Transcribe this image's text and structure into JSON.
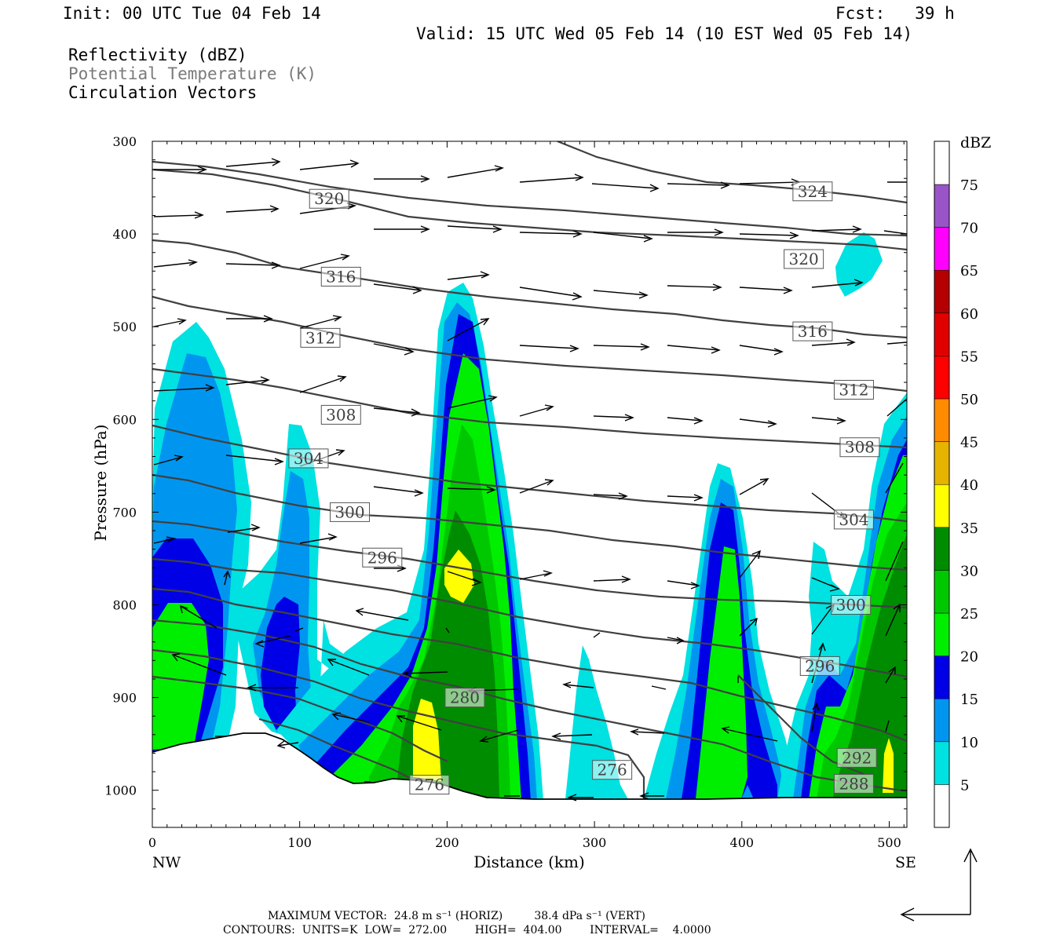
{
  "header": {
    "init": "Init: 00 UTC Tue 04 Feb 14",
    "fcst": "Fcst:   39 h",
    "valid": "Valid: 15 UTC Wed 05 Feb 14 (10 EST Wed 05 Feb 14)",
    "fields": [
      "Reflectivity (dBZ)",
      "Potential Temperature (K)",
      "Circulation Vectors"
    ]
  },
  "colors": {
    "dbz": [
      "#ffffff",
      "#00e1e1",
      "#0096f0",
      "#0000e6",
      "#00ef00",
      "#00c800",
      "#008c00",
      "#ffff00",
      "#e6b400",
      "#ff8c00",
      "#ff0000",
      "#e10000",
      "#b40000",
      "#ff00ff",
      "#9955c8"
    ],
    "theta": "#404040"
  },
  "chart_data": {
    "type": "heatmap",
    "xlabel": "Distance (km)",
    "ylabel": "Pressure (hPa)",
    "xlim": [
      0,
      512
    ],
    "ylim": [
      1040,
      300
    ],
    "x_ticks": [
      "0",
      "100",
      "200",
      "300",
      "400",
      "500"
    ],
    "y_ticks": [
      "300",
      "400",
      "500",
      "600",
      "700",
      "800",
      "900",
      "1000"
    ],
    "endpoints": {
      "left": "NW",
      "right": "SE"
    },
    "colorbar": {
      "unit": "dBZ",
      "levels": [
        "5",
        "10",
        "15",
        "20",
        "25",
        "30",
        "35",
        "40",
        "45",
        "50",
        "55",
        "60",
        "65",
        "70",
        "75"
      ]
    },
    "theta_contours": [
      {
        "label": "324",
        "x": 448,
        "p": 354
      },
      {
        "label": "320",
        "x": 120,
        "p": 362
      },
      {
        "label": "320",
        "x": 442,
        "p": 427
      },
      {
        "label": "316",
        "x": 128,
        "p": 446
      },
      {
        "label": "316",
        "x": 448,
        "p": 505
      },
      {
        "label": "312",
        "x": 114,
        "p": 512
      },
      {
        "label": "312",
        "x": 476,
        "p": 568
      },
      {
        "label": "308",
        "x": 128,
        "p": 595
      },
      {
        "label": "308",
        "x": 480,
        "p": 630
      },
      {
        "label": "304",
        "x": 106,
        "p": 642
      },
      {
        "label": "304",
        "x": 476,
        "p": 708
      },
      {
        "label": "300",
        "x": 134,
        "p": 700
      },
      {
        "label": "300",
        "x": 474,
        "p": 800
      },
      {
        "label": "296",
        "x": 156,
        "p": 749
      },
      {
        "label": "296",
        "x": 453,
        "p": 866
      },
      {
        "label": "292",
        "x": 478,
        "p": 965
      },
      {
        "label": "288",
        "x": 476,
        "p": 993
      },
      {
        "label": "280",
        "x": 212,
        "p": 900
      },
      {
        "label": "276",
        "x": 312,
        "p": 978
      },
      {
        "label": "276",
        "x": 188,
        "p": 994
      }
    ],
    "reflectivity_cells": [
      {
        "x": [
          0,
          60
        ],
        "p": [
          500,
          960
        ],
        "max_dbz": 25
      },
      {
        "x": [
          70,
          115
        ],
        "p": [
          605,
          950
        ],
        "max_dbz": 20
      },
      {
        "x": [
          155,
          265
        ],
        "p": [
          448,
          1010
        ],
        "max_dbz": 35
      },
      {
        "x": [
          275,
          340
        ],
        "p": [
          845,
          1010
        ],
        "max_dbz": 10
      },
      {
        "x": [
          345,
          420
        ],
        "p": [
          588,
          1010
        ],
        "max_dbz": 30
      },
      {
        "x": [
          430,
          512
        ],
        "p": [
          570,
          1010
        ],
        "max_dbz": 35
      },
      {
        "x": [
          463,
          495
        ],
        "p": [
          395,
          465
        ],
        "max_dbz": 5
      }
    ],
    "vectors": {
      "max_horiz": "24.8 m s",
      "max_vert": "38.4 dPa s",
      "upper_level_flow": "westerly",
      "lower_level_flow": "easterly"
    }
  },
  "footer": {
    "line1": "MAXIMUM VECTOR:  24.8 m s⁻¹ (HORIZ)         38.4 dPa s⁻¹ (VERT)",
    "line2": "CONTOURS:  UNITS=K  LOW=  272.00        HIGH=  404.00        INTERVAL=    4.0000"
  }
}
